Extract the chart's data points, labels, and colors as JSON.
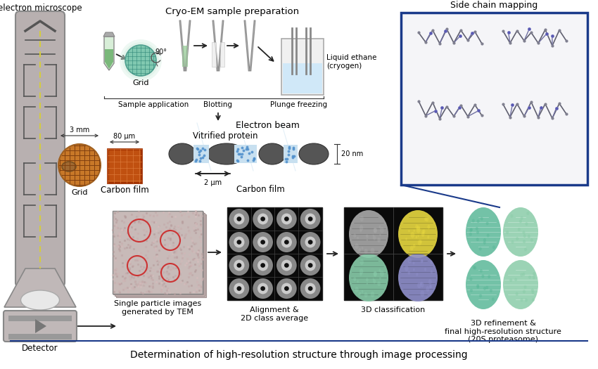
{
  "title": "Determination of high-resolution structure through image processing",
  "title_fontsize": 10,
  "background_color": "#ffffff",
  "top_label_cryo": "Cryo-EM sample preparation",
  "top_label_tem": "Transmission\nelectron microscope",
  "label_side_chain": "Side chain mapping",
  "label_liquid_ethane": "Liquid ethane\n(cryogen)",
  "label_sample_app": "Sample application",
  "label_blotting": "Blotting",
  "label_plunge": "Plunge freezing",
  "label_electron_beam": "Electron beam",
  "label_vitrified": "Vitrified protein",
  "label_grid": "Grid",
  "label_carbon_film1": "Carbon film",
  "label_carbon_film2": "Carbon film",
  "label_3mm": "3 mm",
  "label_80um": "80 μm",
  "label_20nm": "20 nm",
  "label_2um": "2 μm",
  "label_90deg": "90°",
  "label_detector": "Detector",
  "label_single_particle": "Single particle images\ngenerated by TEM",
  "label_alignment": "Alignment &\n2D class average",
  "label_3d_class": "3D classification",
  "label_3d_refine": "3D refinement &\nfinal high-resolution structure\n(20S proteasome)",
  "side_chain_box_color": "#1a3a8a",
  "bottom_line_color": "#1a3a8a"
}
